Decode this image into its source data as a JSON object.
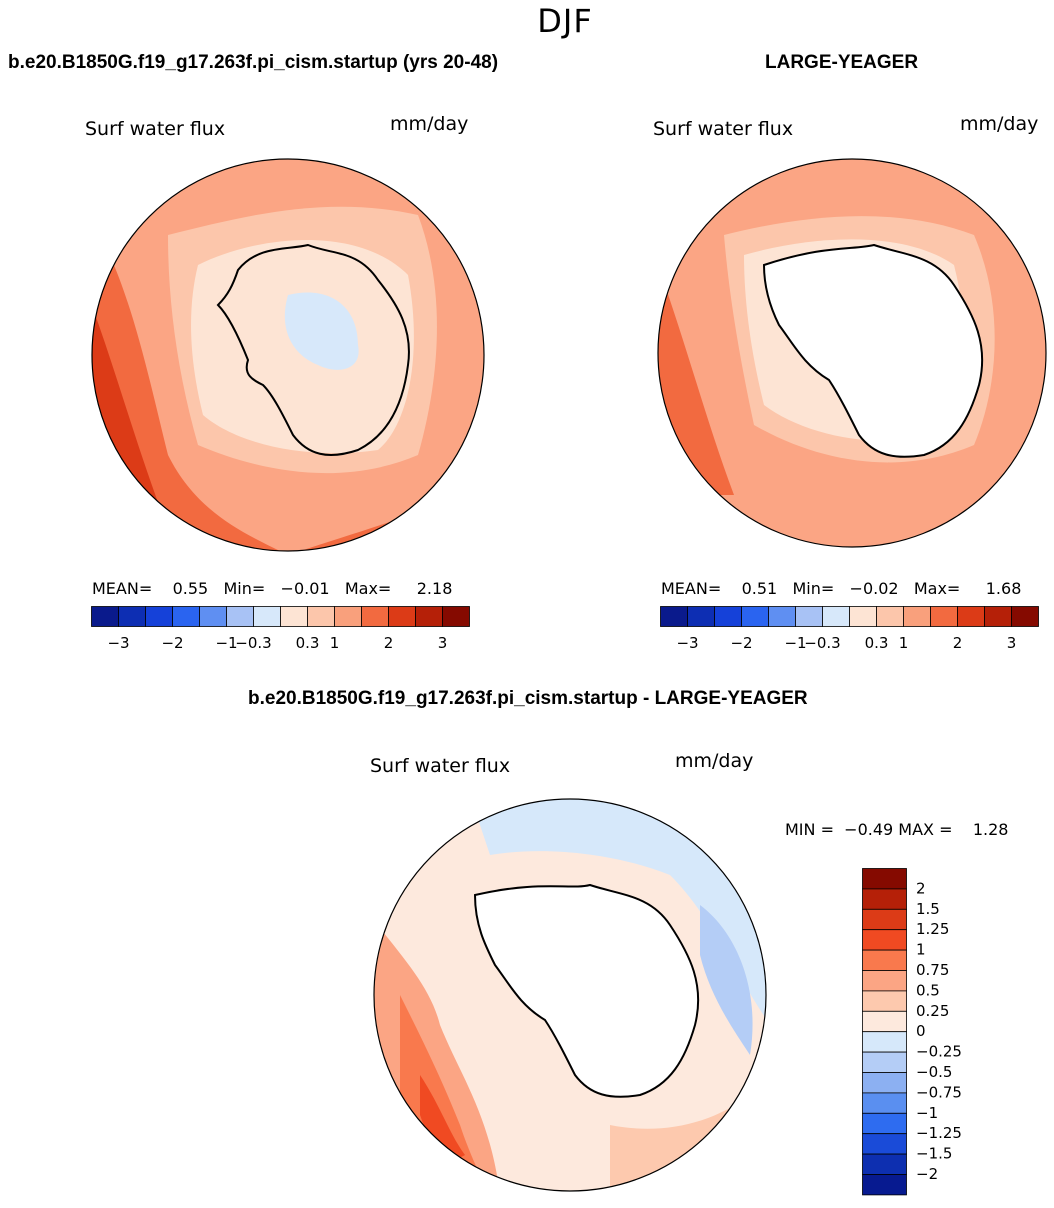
{
  "season": "DJF",
  "panels": [
    {
      "case": "b.e20.B1850G.f19_g17.263f.pi_cism.startup (yrs 20-48)",
      "field": "Surf water flux",
      "units": "mm/day",
      "stats": {
        "mean_label": "MEAN=",
        "mean": "0.55",
        "min_label": "Min=",
        "min": "−0.01",
        "max_label": "Max=",
        "max": "2.18"
      }
    },
    {
      "case": "LARGE-YEAGER",
      "field": "Surf water flux",
      "units": "mm/day",
      "stats": {
        "mean_label": "MEAN=",
        "mean": "0.51",
        "min_label": "Min=",
        "min": "−0.02",
        "max_label": "Max=",
        "max": "1.68"
      }
    }
  ],
  "colorbar": {
    "colors": [
      "#0a1a8c",
      "#0d2eb3",
      "#1541d9",
      "#2a64f0",
      "#5f8ff2",
      "#a8c2f5",
      "#d7e8fa",
      "#fde4d4",
      "#fcc6ab",
      "#f9a07c",
      "#f26a40",
      "#dc3b17",
      "#b52008",
      "#850a00"
    ],
    "labels": [
      "−3",
      "−2",
      "−1",
      "−0.3",
      "0.3",
      "1",
      "2",
      "3"
    ]
  },
  "difference": {
    "title": "b.e20.B1850G.f19_g17.263f.pi_cism.startup - LARGE-YEAGER",
    "field": "Surf water flux",
    "units": "mm/day",
    "min_label": "MIN =",
    "min": "−0.49",
    "max_label": "MAX =",
    "max": "1.28",
    "colors_top_to_bottom": [
      "#850a00",
      "#b52008",
      "#dc3b17",
      "#f04a22",
      "#f9794d",
      "#fba584",
      "#fdc9ae",
      "#fde9dd",
      "#d6e8fa",
      "#b4cdf6",
      "#8cb0f2",
      "#5a8ff0",
      "#2e6cf0",
      "#1a4bd8",
      "#0d2fb0",
      "#071a90"
    ],
    "labels": [
      "2",
      "1.5",
      "1.25",
      "1",
      "0.75",
      "0.5",
      "0.25",
      "0",
      "−0.25",
      "−0.5",
      "−0.75",
      "−1",
      "−1.25",
      "−1.5",
      "−2"
    ]
  }
}
